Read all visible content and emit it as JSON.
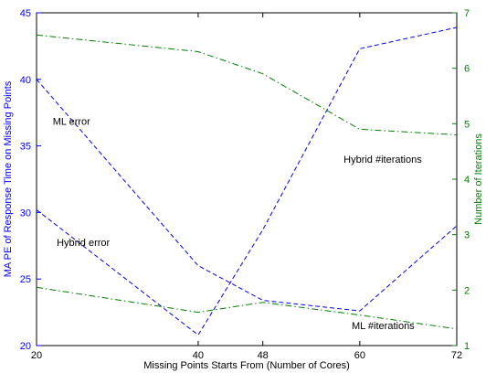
{
  "chart_data": {
    "type": "line",
    "title": "",
    "xlabel": "Missing Points Starts From (Number of Cores)",
    "ylabel_left": "MA PE of Response Time on Missing Points",
    "ylabel_right": "Number of Iterations",
    "x_ticks": [
      20,
      40,
      48,
      60,
      72
    ],
    "xlim": [
      20,
      72
    ],
    "ylim_left": [
      20,
      45
    ],
    "ylim_right": [
      1,
      7
    ],
    "y_ticks_left": [
      20,
      25,
      30,
      35,
      40,
      45
    ],
    "y_ticks_right": [
      1,
      2,
      3,
      4,
      5,
      6,
      7
    ],
    "grid": false,
    "colors": {
      "left_axis": "#0000ff",
      "right_axis": "#008000",
      "error_series": "#0000ff",
      "iteration_series": "#008000"
    },
    "series": [
      {
        "name": "ML error",
        "axis": "left",
        "style": "dashed",
        "x": [
          20,
          40,
          48,
          60,
          72
        ],
        "y": [
          40.0,
          26.0,
          23.4,
          22.6,
          29.0
        ]
      },
      {
        "name": "Hybrid error",
        "axis": "left",
        "style": "dashed",
        "x": [
          20,
          40,
          48,
          60,
          72
        ],
        "y": [
          30.2,
          20.8,
          28.7,
          42.3,
          43.9
        ]
      },
      {
        "name": "Hybrid #iterations",
        "axis": "right",
        "style": "dashdot",
        "x": [
          20,
          40,
          48,
          60,
          72
        ],
        "y": [
          6.6,
          6.3,
          5.9,
          4.9,
          4.8
        ]
      },
      {
        "name": "ML #iterations",
        "axis": "right",
        "style": "dashdot",
        "x": [
          20,
          40,
          48,
          60,
          72
        ],
        "y": [
          2.05,
          1.6,
          1.78,
          1.55,
          1.3
        ]
      }
    ],
    "annotations": [
      {
        "text": "ML error",
        "x": 22,
        "y": 36.6,
        "axis": "left"
      },
      {
        "text": "Hybrid error",
        "x": 22.5,
        "y": 27.5,
        "axis": "left"
      },
      {
        "text": "Hybrid #iterations",
        "x": 58,
        "y": 4.3,
        "axis": "right"
      },
      {
        "text": "ML #iterations",
        "x": 59,
        "y": 1.3,
        "axis": "right"
      }
    ]
  }
}
